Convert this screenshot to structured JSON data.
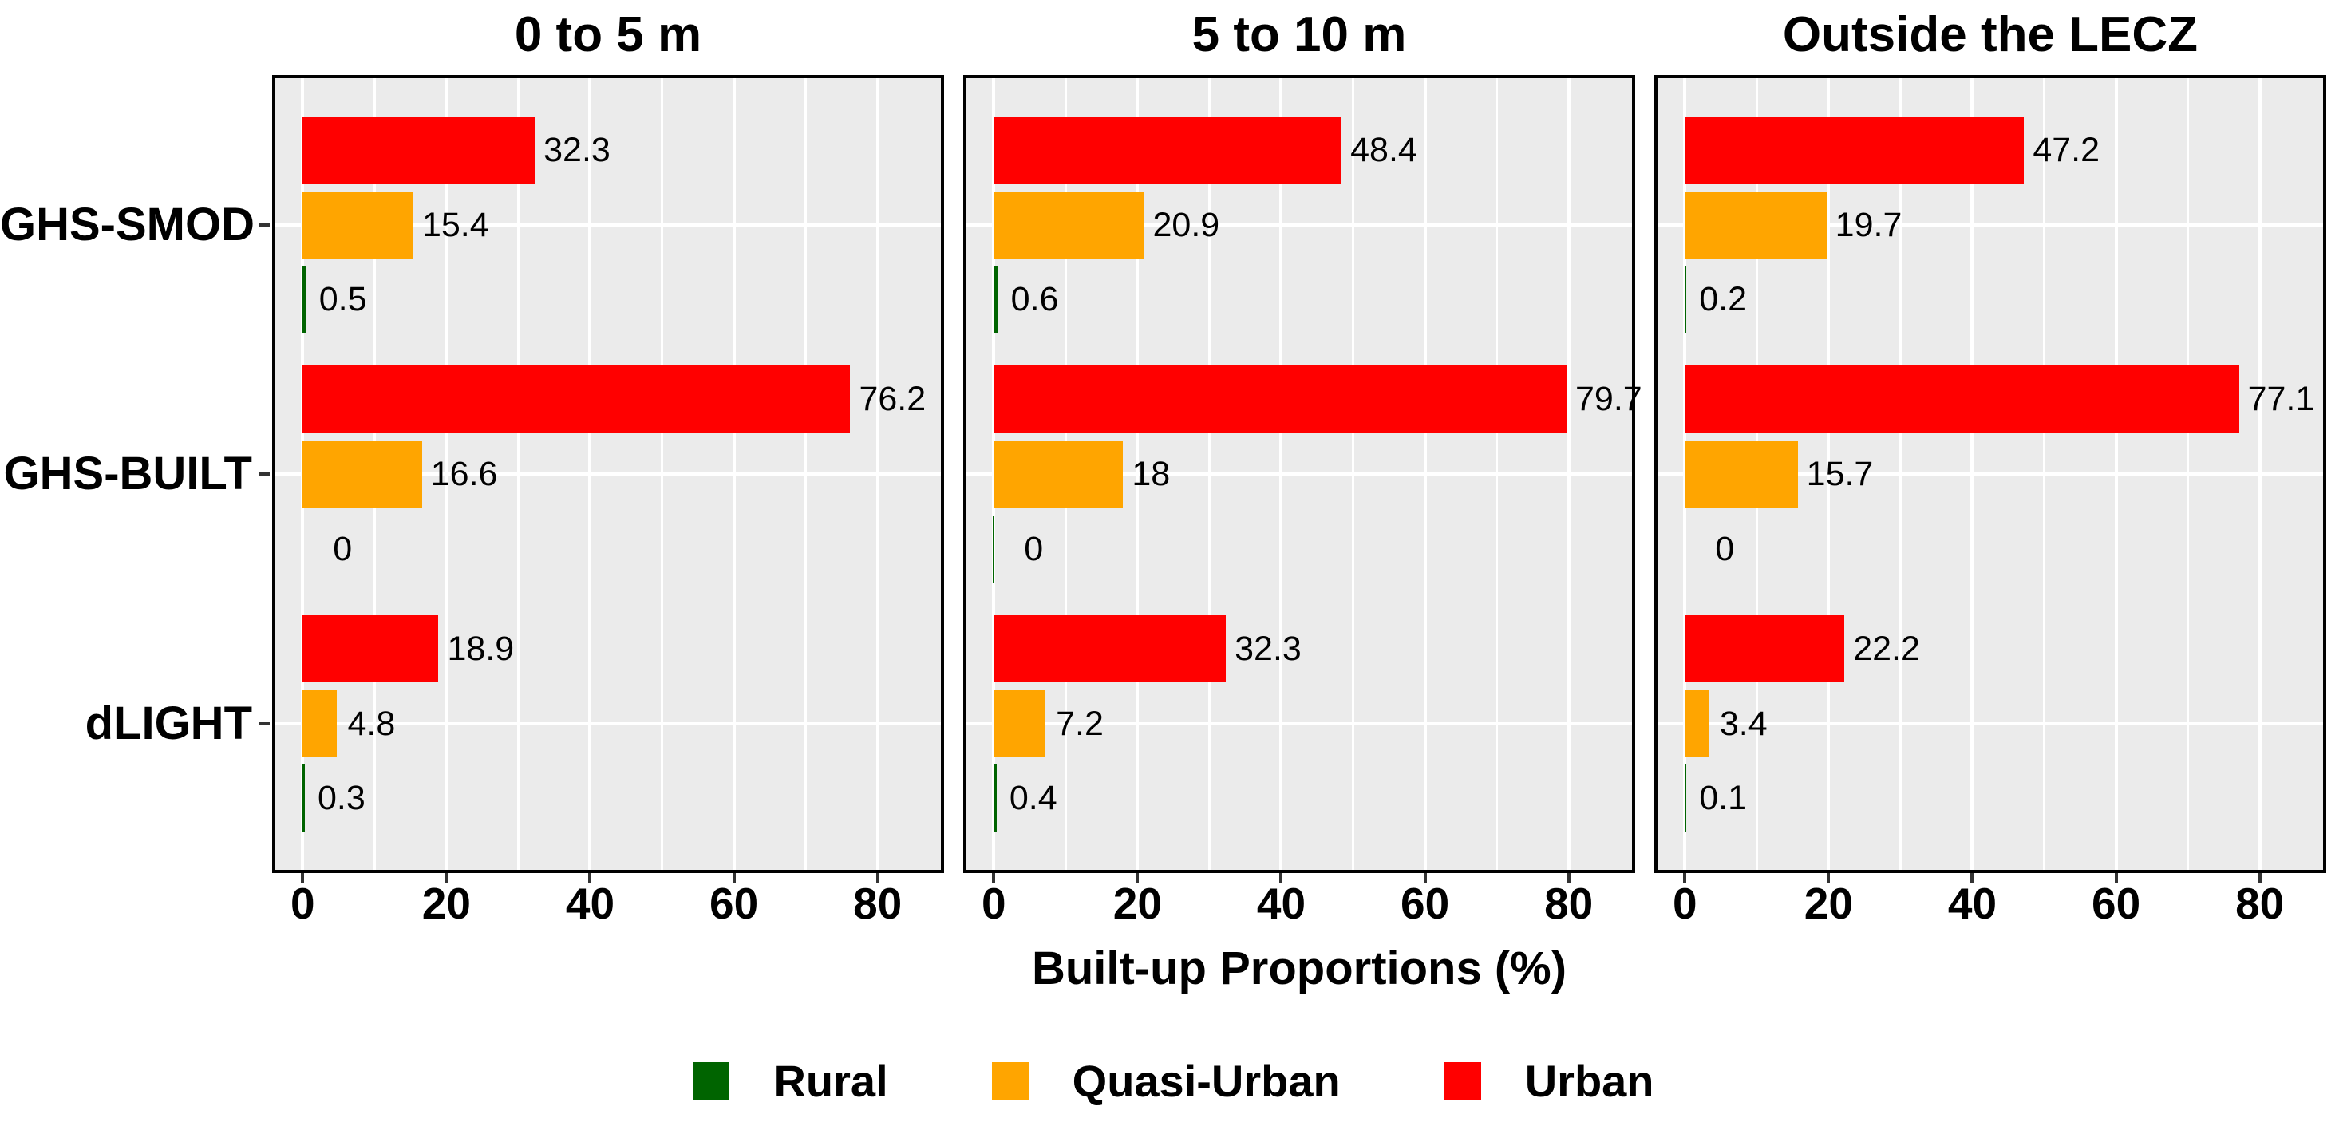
{
  "chart_data": {
    "type": "bar",
    "orientation": "horizontal",
    "faceted": true,
    "xlabel": "Built-up Proportions (%)",
    "x_tick_labels": [
      "0",
      "20",
      "40",
      "60",
      "80"
    ],
    "x_tick_values": [
      0,
      20,
      40,
      60,
      80
    ],
    "x_minor_tick_values": [
      10,
      30,
      50,
      70
    ],
    "xlim": [
      -4.25,
      89.25
    ],
    "grid": "on",
    "categories": [
      "GHS-SMOD",
      "GHS-BUILT",
      "dLIGHT"
    ],
    "series_names": [
      "Urban",
      "Quasi-Urban",
      "Rural"
    ],
    "colors": {
      "urban": "#FF0000",
      "quasi_urban": "#FFA500",
      "rural": "#006400",
      "panel_background": "#EBEBEB",
      "gridline": "#FFFFFF",
      "panel_border": "#000000",
      "tick": "#333333",
      "text": "#000000"
    },
    "facets": [
      {
        "title": "0 to 5 m",
        "zero_value_hairline": false,
        "series": [
          {
            "name": "Urban",
            "color": "#FF0000",
            "values": [
              32.3,
              76.2,
              18.9
            ],
            "labels": [
              "32.3",
              "76.2",
              "18.9"
            ]
          },
          {
            "name": "Quasi-Urban",
            "color": "#FFA500",
            "values": [
              15.4,
              16.6,
              4.8
            ],
            "labels": [
              "15.4",
              "16.6",
              "4.8"
            ]
          },
          {
            "name": "Rural",
            "color": "#006400",
            "values": [
              0.5,
              0,
              0.3
            ],
            "labels": [
              "0.5",
              "0",
              "0.3"
            ]
          }
        ]
      },
      {
        "title": "5 to 10 m",
        "zero_value_hairline": true,
        "series": [
          {
            "name": "Urban",
            "color": "#FF0000",
            "values": [
              48.4,
              79.7,
              32.3
            ],
            "labels": [
              "48.4",
              "79.7",
              "32.3"
            ]
          },
          {
            "name": "Quasi-Urban",
            "color": "#FFA500",
            "values": [
              20.9,
              18,
              7.2
            ],
            "labels": [
              "20.9",
              "18",
              "7.2"
            ]
          },
          {
            "name": "Rural",
            "color": "#006400",
            "values": [
              0.6,
              0,
              0.4
            ],
            "labels": [
              "0.6",
              "0",
              "0.4"
            ]
          }
        ]
      },
      {
        "title": "Outside the LECZ",
        "zero_value_hairline": false,
        "series": [
          {
            "name": "Urban",
            "color": "#FF0000",
            "values": [
              47.2,
              77.1,
              22.2
            ],
            "labels": [
              "47.2",
              "77.1",
              "22.2"
            ]
          },
          {
            "name": "Quasi-Urban",
            "color": "#FFA500",
            "values": [
              19.7,
              15.7,
              3.4
            ],
            "labels": [
              "19.7",
              "15.7",
              "3.4"
            ]
          },
          {
            "name": "Rural",
            "color": "#006400",
            "values": [
              0.2,
              0,
              0.1
            ],
            "labels": [
              "0.2",
              "0",
              "0.1"
            ]
          }
        ]
      }
    ],
    "legend": {
      "position": "bottom",
      "items": [
        {
          "label": "Rural",
          "color": "#006400"
        },
        {
          "label": "Quasi-Urban",
          "color": "#FFA500"
        },
        {
          "label": "Urban",
          "color": "#FF0000"
        }
      ]
    }
  }
}
